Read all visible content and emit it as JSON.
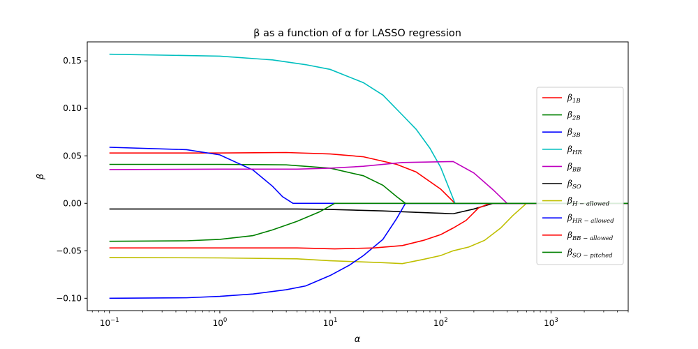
{
  "chart_data": {
    "type": "line",
    "title": "β as a function of α for LASSO regression",
    "xlabel": "α",
    "ylabel": "β",
    "xscale": "log",
    "xlim": [
      0.063,
      5000
    ],
    "ylim": [
      -0.113,
      0.17
    ],
    "x_ticks": [
      0.1,
      1,
      10,
      100,
      1000
    ],
    "x_tick_labels": [
      {
        "base": "10",
        "exp": "−1"
      },
      {
        "base": "10",
        "exp": "0"
      },
      {
        "base": "10",
        "exp": "1"
      },
      {
        "base": "10",
        "exp": "2"
      },
      {
        "base": "10",
        "exp": "3"
      }
    ],
    "y_ticks": [
      -0.1,
      -0.05,
      0.0,
      0.05,
      0.1,
      0.15
    ],
    "y_tick_labels": [
      "−0.10",
      "−0.05",
      "0.00",
      "0.05",
      "0.10",
      "0.15"
    ],
    "grid": false,
    "legend": "right",
    "series": [
      {
        "name": "β",
        "sub": "1B",
        "color": "#ff0000",
        "points": [
          [
            0.1,
            0.053
          ],
          [
            1,
            0.053
          ],
          [
            4,
            0.0535
          ],
          [
            10,
            0.052
          ],
          [
            20,
            0.049
          ],
          [
            40,
            0.041
          ],
          [
            60,
            0.033
          ],
          [
            100,
            0.015
          ],
          [
            135,
            0.0
          ],
          [
            5000,
            0.0
          ]
        ]
      },
      {
        "name": "β",
        "sub": "2B",
        "color": "#008000",
        "points": [
          [
            0.1,
            0.041
          ],
          [
            1,
            0.041
          ],
          [
            4,
            0.0405
          ],
          [
            10,
            0.037
          ],
          [
            20,
            0.029
          ],
          [
            30,
            0.019
          ],
          [
            40,
            0.007
          ],
          [
            48,
            0.0
          ],
          [
            5000,
            0.0
          ]
        ]
      },
      {
        "name": "β",
        "sub": "3B",
        "color": "#0000ff",
        "points": [
          [
            0.1,
            0.059
          ],
          [
            0.5,
            0.0565
          ],
          [
            1,
            0.051
          ],
          [
            2,
            0.035
          ],
          [
            3,
            0.018
          ],
          [
            3.7,
            0.007
          ],
          [
            4.6,
            0.0
          ],
          [
            5000,
            0.0
          ]
        ]
      },
      {
        "name": "β",
        "sub": "HR",
        "color": "#00bfbf",
        "points": [
          [
            0.1,
            0.157
          ],
          [
            1,
            0.155
          ],
          [
            3,
            0.151
          ],
          [
            6,
            0.146
          ],
          [
            10,
            0.141
          ],
          [
            20,
            0.127
          ],
          [
            30,
            0.114
          ],
          [
            45,
            0.093
          ],
          [
            60,
            0.078
          ],
          [
            80,
            0.058
          ],
          [
            100,
            0.038
          ],
          [
            120,
            0.015
          ],
          [
            135,
            0.0
          ],
          [
            5000,
            0.0
          ]
        ]
      },
      {
        "name": "β",
        "sub": "BB",
        "color": "#bf00bf",
        "points": [
          [
            0.1,
            0.0355
          ],
          [
            1,
            0.036
          ],
          [
            5,
            0.036
          ],
          [
            10,
            0.037
          ],
          [
            20,
            0.039
          ],
          [
            45,
            0.043
          ],
          [
            130,
            0.044
          ],
          [
            200,
            0.032
          ],
          [
            300,
            0.014
          ],
          [
            400,
            0.0
          ],
          [
            5000,
            0.0
          ]
        ]
      },
      {
        "name": "β",
        "sub": "SO",
        "color": "#000000",
        "points": [
          [
            0.1,
            -0.006
          ],
          [
            5,
            -0.006
          ],
          [
            10,
            -0.0065
          ],
          [
            30,
            -0.008
          ],
          [
            60,
            -0.0095
          ],
          [
            130,
            -0.011
          ],
          [
            200,
            -0.006
          ],
          [
            300,
            0.0
          ],
          [
            5000,
            0.0
          ]
        ]
      },
      {
        "name": "β",
        "sub": "H − allowed",
        "color": "#bfbf00",
        "points": [
          [
            0.1,
            -0.057
          ],
          [
            1,
            -0.0575
          ],
          [
            5,
            -0.0585
          ],
          [
            10,
            -0.0605
          ],
          [
            30,
            -0.0625
          ],
          [
            45,
            -0.0635
          ],
          [
            70,
            -0.059
          ],
          [
            100,
            -0.055
          ],
          [
            130,
            -0.05
          ],
          [
            180,
            -0.046
          ],
          [
            250,
            -0.039
          ],
          [
            350,
            -0.026
          ],
          [
            450,
            -0.013
          ],
          [
            600,
            0.0
          ],
          [
            5000,
            0.0
          ]
        ]
      },
      {
        "name": "β",
        "sub": "HR − allowed",
        "color": "#0000ff",
        "points": [
          [
            0.1,
            -0.1
          ],
          [
            0.5,
            -0.0995
          ],
          [
            1,
            -0.098
          ],
          [
            2,
            -0.0955
          ],
          [
            4,
            -0.091
          ],
          [
            6,
            -0.087
          ],
          [
            10,
            -0.076
          ],
          [
            15,
            -0.065
          ],
          [
            20,
            -0.055
          ],
          [
            30,
            -0.038
          ],
          [
            40,
            -0.016
          ],
          [
            48,
            0.0
          ],
          [
            5000,
            0.0
          ]
        ]
      },
      {
        "name": "β",
        "sub": "BB − allowed",
        "color": "#ff0000",
        "points": [
          [
            0.1,
            -0.047
          ],
          [
            1,
            -0.047
          ],
          [
            5,
            -0.047
          ],
          [
            11,
            -0.048
          ],
          [
            25,
            -0.047
          ],
          [
            45,
            -0.0445
          ],
          [
            70,
            -0.039
          ],
          [
            100,
            -0.033
          ],
          [
            130,
            -0.026
          ],
          [
            170,
            -0.018
          ],
          [
            220,
            -0.005
          ],
          [
            280,
            0.0
          ],
          [
            5000,
            0.0
          ]
        ]
      },
      {
        "name": "β",
        "sub": "SO − pitched",
        "color": "#008000",
        "points": [
          [
            0.1,
            -0.04
          ],
          [
            0.5,
            -0.0395
          ],
          [
            1,
            -0.038
          ],
          [
            2,
            -0.034
          ],
          [
            3,
            -0.028
          ],
          [
            5,
            -0.019
          ],
          [
            8,
            -0.009
          ],
          [
            11,
            0.0
          ],
          [
            5000,
            0.0
          ]
        ]
      }
    ]
  }
}
